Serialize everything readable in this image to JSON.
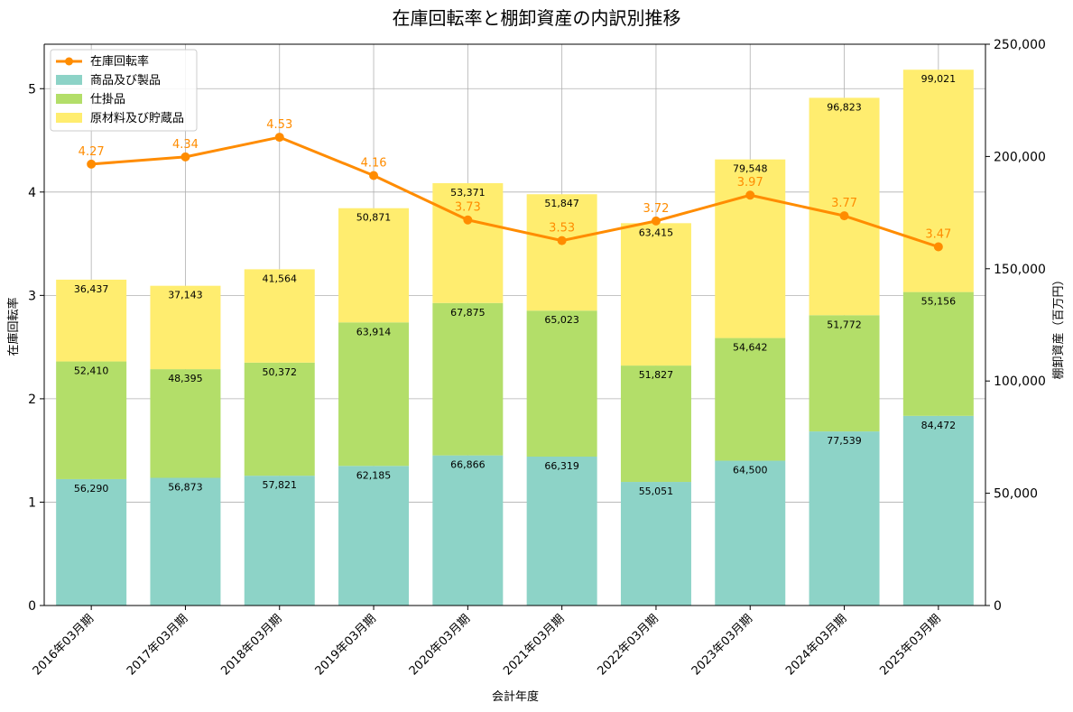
{
  "chart_data": {
    "type": "bar",
    "stacked": true,
    "title": "在庫回転率と棚卸資産の内訳別推移",
    "xlabel": "会計年度",
    "ylabel_left": "在庫回転率",
    "ylabel_right": "棚卸資産（百万円）",
    "categories": [
      "2016年03月期",
      "2017年03月期",
      "2018年03月期",
      "2019年03月期",
      "2020年03月期",
      "2021年03月期",
      "2022年03月期",
      "2023年03月期",
      "2024年03月期",
      "2025年03月期"
    ],
    "series": [
      {
        "name": "商品及び製品",
        "color": "#8dd3c7",
        "values": [
          56290,
          56873,
          57821,
          62185,
          66866,
          66319,
          55051,
          64500,
          77539,
          84472
        ],
        "labels": [
          "56,290",
          "56,873",
          "57,821",
          "62,185",
          "66,866",
          "66,319",
          "55,051",
          "64,500",
          "77,539",
          "84,472"
        ]
      },
      {
        "name": "仕掛品",
        "color": "#b3de69",
        "values": [
          52410,
          48395,
          50372,
          63914,
          67875,
          65023,
          51827,
          54642,
          51772,
          55156
        ],
        "labels": [
          "52,410",
          "48,395",
          "50,372",
          "63,914",
          "67,875",
          "65,023",
          "51,827",
          "54,642",
          "51,772",
          "55,156"
        ]
      },
      {
        "name": "原材料及び貯蔵品",
        "color": "#ffed6f",
        "values": [
          36437,
          37143,
          41564,
          50871,
          53371,
          51847,
          63415,
          79548,
          96823,
          99021
        ],
        "labels": [
          "36,437",
          "37,143",
          "41,564",
          "50,871",
          "53,371",
          "51,847",
          "63,415",
          "79,548",
          "96,823",
          "99,021"
        ]
      }
    ],
    "line": {
      "name": "在庫回転率",
      "color": "#ff8c00",
      "values": [
        4.27,
        4.34,
        4.53,
        4.16,
        3.73,
        3.53,
        3.72,
        3.97,
        3.77,
        3.47
      ],
      "labels": [
        "4.27",
        "4.34",
        "4.53",
        "4.16",
        "3.73",
        "3.53",
        "3.72",
        "3.97",
        "3.77",
        "3.47"
      ]
    },
    "y_left": {
      "range": [
        0,
        5.43
      ],
      "ticks": [
        0,
        1,
        2,
        3,
        4,
        5
      ],
      "tick_labels": [
        "0",
        "1",
        "2",
        "3",
        "4",
        "5"
      ]
    },
    "y_right": {
      "range": [
        0,
        250000
      ],
      "ticks": [
        0,
        50000,
        100000,
        150000,
        200000,
        250000
      ],
      "tick_labels": [
        "0",
        "50,000",
        "100,000",
        "150,000",
        "200,000",
        "250,000"
      ]
    },
    "legend": {
      "position": "top-left",
      "items": [
        "在庫回転率",
        "商品及び製品",
        "仕掛品",
        "原材料及び貯蔵品"
      ]
    },
    "grid": true
  }
}
